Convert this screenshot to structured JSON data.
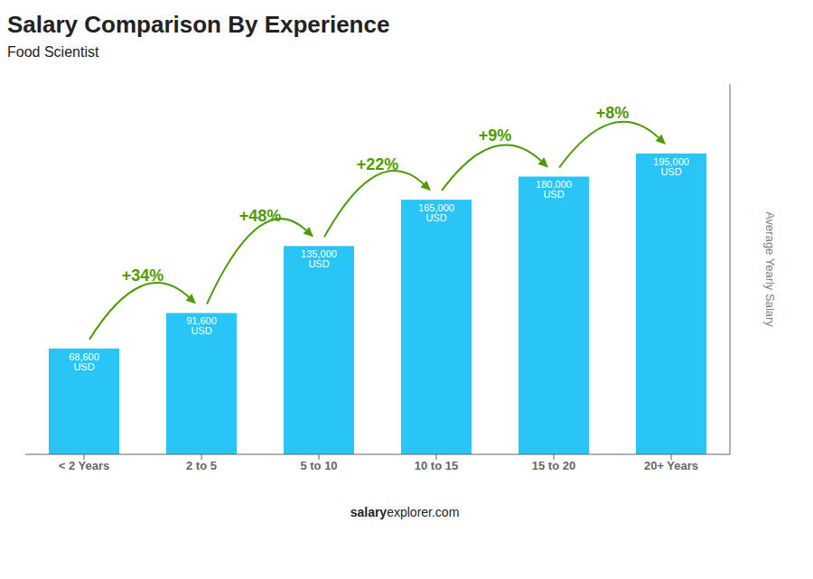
{
  "chart_data": {
    "type": "bar",
    "title": "Salary Comparison By Experience",
    "subtitle": "Food Scientist",
    "ylabel": "Average Yearly Salary",
    "categories": [
      "< 2 Years",
      "2 to 5",
      "5 to 10",
      "10 to 15",
      "15 to 20",
      "20+ Years"
    ],
    "values": [
      68600,
      91600,
      135000,
      165000,
      180000,
      195000
    ],
    "value_labels": [
      "68,600 USD",
      "91,600 USD",
      "135,000 USD",
      "165,000 USD",
      "180,000 USD",
      "195,000 USD"
    ],
    "data_labels": true,
    "color": "#29c5f6",
    "ylim": [
      0,
      240000
    ],
    "tick_labels": "x",
    "grid": false,
    "annotations": [
      {
        "text": "+34%",
        "from": "< 2 Years",
        "to": "2 to 5"
      },
      {
        "text": "+48%",
        "from": "2 to 5",
        "to": "5 to 10"
      },
      {
        "text": "+22%",
        "from": "5 to 10",
        "to": "10 to 15"
      },
      {
        "text": "+9%",
        "from": "10 to 15",
        "to": "15 to 20"
      },
      {
        "text": "+8%",
        "from": "15 to 20",
        "to": "20+ Years"
      }
    ],
    "footer": [
      "salary",
      "explorer.com"
    ]
  }
}
